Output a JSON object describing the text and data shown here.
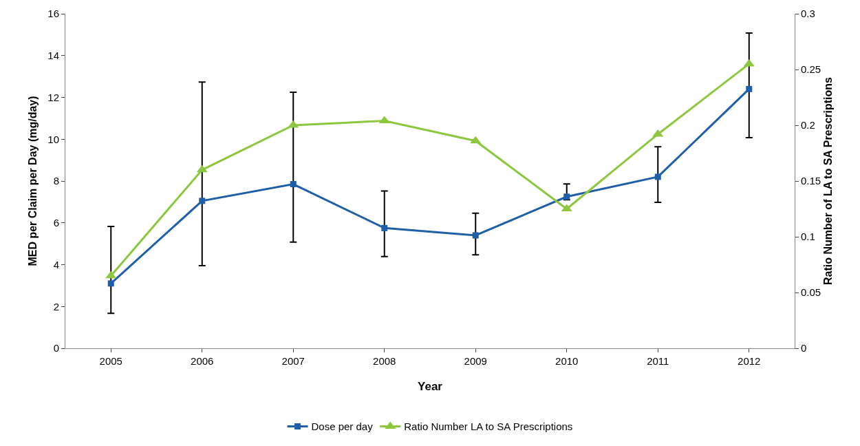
{
  "chart_data": {
    "type": "line",
    "xlabel": "Year",
    "ylabel": "MED per Claim per Day (mg/day)",
    "y2label": "Ratio Number of LA to SA Prescriptions",
    "categories": [
      "2005",
      "2006",
      "2007",
      "2008",
      "2009",
      "2010",
      "2011",
      "2012"
    ],
    "series": [
      {
        "name": "Dose per day",
        "color": "#1f5fa8",
        "marker": "square",
        "values": [
          3.1,
          7.05,
          7.85,
          5.75,
          5.4,
          7.25,
          8.2,
          12.4
        ],
        "errors": [
          [
            1.67,
            5.83
          ],
          [
            3.95,
            12.73
          ],
          [
            5.08,
            12.25
          ],
          [
            4.39,
            7.52
          ],
          [
            4.47,
            6.46
          ],
          [
            7.1,
            7.86
          ],
          [
            6.98,
            9.64
          ],
          [
            10.07,
            15.08
          ]
        ]
      },
      {
        "name": "Ratio Number LA to SA Prescriptions",
        "color": "#8dc63f",
        "marker": "triangle",
        "axis": "y2",
        "values": [
          0.065,
          0.16,
          0.2,
          0.204,
          0.186,
          0.125,
          0.192,
          0.255
        ]
      }
    ],
    "ylim": [
      0,
      16
    ],
    "yticks": [
      0,
      2,
      4,
      6,
      8,
      10,
      12,
      14,
      16
    ],
    "y2lim": [
      0,
      0.3
    ],
    "y2ticks": [
      0,
      0.05,
      0.1,
      0.15,
      0.2,
      0.25,
      0.3
    ],
    "grid": false,
    "legend": "bottom"
  }
}
